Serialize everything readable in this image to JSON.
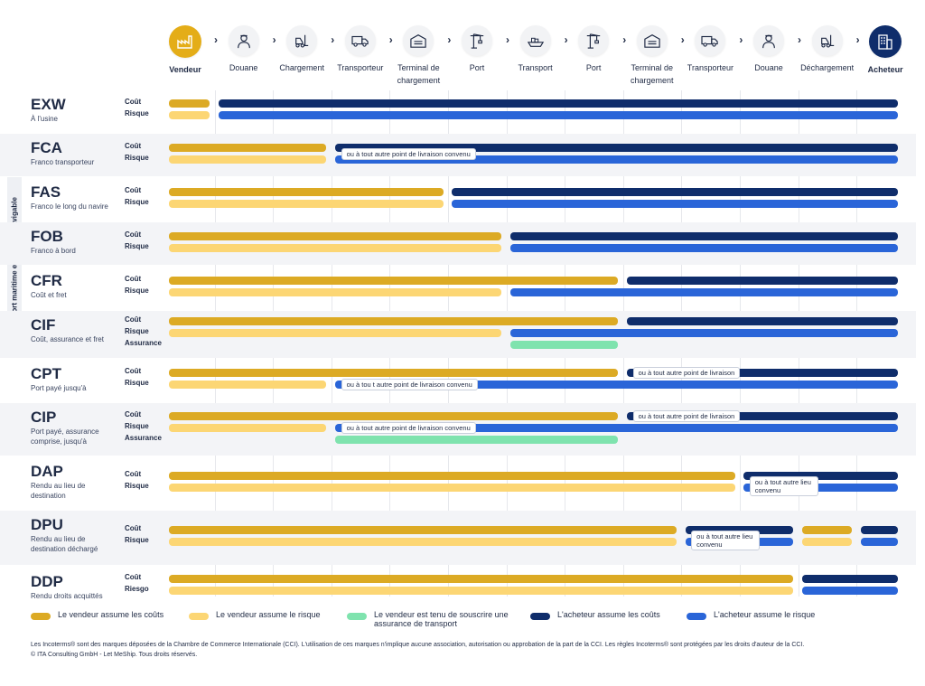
{
  "colors": {
    "seller_cost": "#dcaa24",
    "seller_risk": "#fcd674",
    "insurance": "#7fe3ae",
    "buyer_cost": "#0f2d6b",
    "buyer_risk": "#2a65d8"
  },
  "stages": [
    {
      "label": "Vendeur",
      "icon": "factory-icon",
      "bold": true,
      "active": "seller"
    },
    {
      "label": "Douane",
      "icon": "customs-officer-icon"
    },
    {
      "label": "Chargement",
      "icon": "forklift-icon"
    },
    {
      "label": "Transporteur",
      "icon": "truck-icon"
    },
    {
      "label": "Terminal de chargement",
      "icon": "warehouse-icon"
    },
    {
      "label": "Port",
      "icon": "crane-icon"
    },
    {
      "label": "Transport",
      "icon": "ship-icon"
    },
    {
      "label": "Port",
      "icon": "crane-icon"
    },
    {
      "label": "Terminal de chargement",
      "icon": "warehouse-icon"
    },
    {
      "label": "Transporteur",
      "icon": "truck-icon"
    },
    {
      "label": "Douane",
      "icon": "customs-officer-icon"
    },
    {
      "label": "Déchargement",
      "icon": "forklift-icon"
    },
    {
      "label": "Acheteur",
      "icon": "office-building-icon",
      "bold": true,
      "active": "buyer"
    }
  ],
  "side_label": "Transport maritime et par voie navigable",
  "chart_data": {
    "type": "bar",
    "x_categories": [
      "Vendeur",
      "Douane",
      "Chargement",
      "Transporteur",
      "Terminal de chargement",
      "Port",
      "Transport",
      "Port",
      "Terminal de chargement",
      "Transporteur",
      "Douane",
      "Déchargement",
      "Acheteur"
    ],
    "series_legend": [
      {
        "key": "seller_cost",
        "name": "Le vendeur assume les coûts"
      },
      {
        "key": "seller_risk",
        "name": "Le vendeur assume le risque"
      },
      {
        "key": "insurance",
        "name": "Le vendeur est tenu de souscrire une assurance de transport"
      },
      {
        "key": "buyer_cost",
        "name": "L'acheteur assume les coûts"
      },
      {
        "key": "buyer_risk",
        "name": "L'acheteur assume le risque"
      }
    ],
    "terms": [
      {
        "code": "EXW",
        "desc": "À l'usine",
        "labels": [
          "Coût",
          "Risque"
        ],
        "bars": [
          {
            "line": 0,
            "type": "seller_cost",
            "start": 0,
            "end": 0.7
          },
          {
            "line": 0,
            "type": "buyer_cost",
            "start": 0.85,
            "end": 12.5
          },
          {
            "line": 1,
            "type": "seller_risk",
            "start": 0,
            "end": 0.7
          },
          {
            "line": 1,
            "type": "buyer_risk",
            "start": 0.85,
            "end": 12.5
          }
        ]
      },
      {
        "code": "FCA",
        "desc": "Franco transporteur",
        "labels": [
          "Coût",
          "Risque"
        ],
        "bars": [
          {
            "line": 0,
            "type": "seller_cost",
            "start": 0,
            "end": 2.7
          },
          {
            "line": 0,
            "type": "buyer_cost",
            "start": 2.85,
            "end": 12.5
          },
          {
            "line": 1,
            "type": "seller_risk",
            "start": 0,
            "end": 2.7
          },
          {
            "line": 1,
            "type": "buyer_risk",
            "start": 2.85,
            "end": 12.5
          }
        ],
        "notes": [
          {
            "text": "ou à tout autre point de livraison convenu",
            "line": 0.5,
            "at": 2.95
          }
        ]
      },
      {
        "code": "FAS",
        "desc": "Franco le long du navire",
        "labels": [
          "Coût",
          "Risque"
        ],
        "bars": [
          {
            "line": 0,
            "type": "seller_cost",
            "start": 0,
            "end": 4.7
          },
          {
            "line": 0,
            "type": "buyer_cost",
            "start": 4.85,
            "end": 12.5
          },
          {
            "line": 1,
            "type": "seller_risk",
            "start": 0,
            "end": 4.7
          },
          {
            "line": 1,
            "type": "buyer_risk",
            "start": 4.85,
            "end": 12.5
          }
        ]
      },
      {
        "code": "FOB",
        "desc": "Franco à bord",
        "labels": [
          "Coût",
          "Risque"
        ],
        "bars": [
          {
            "line": 0,
            "type": "seller_cost",
            "start": 0,
            "end": 5.7
          },
          {
            "line": 0,
            "type": "buyer_cost",
            "start": 5.85,
            "end": 12.5
          },
          {
            "line": 1,
            "type": "seller_risk",
            "start": 0,
            "end": 5.7
          },
          {
            "line": 1,
            "type": "buyer_risk",
            "start": 5.85,
            "end": 12.5
          }
        ]
      },
      {
        "code": "CFR",
        "desc": "Coût et fret",
        "labels": [
          "Coût",
          "Risque"
        ],
        "bars": [
          {
            "line": 0,
            "type": "seller_cost",
            "start": 0,
            "end": 7.7
          },
          {
            "line": 0,
            "type": "buyer_cost",
            "start": 7.85,
            "end": 12.5
          },
          {
            "line": 1,
            "type": "seller_risk",
            "start": 0,
            "end": 5.7
          },
          {
            "line": 1,
            "type": "buyer_risk",
            "start": 5.85,
            "end": 12.5
          }
        ]
      },
      {
        "code": "CIF",
        "desc": "Coût, assurance et fret",
        "labels": [
          "Coût",
          "Risque",
          "Assurance"
        ],
        "bars": [
          {
            "line": 0,
            "type": "seller_cost",
            "start": 0,
            "end": 7.7
          },
          {
            "line": 0,
            "type": "buyer_cost",
            "start": 7.85,
            "end": 12.5
          },
          {
            "line": 1,
            "type": "seller_risk",
            "start": 0,
            "end": 5.7
          },
          {
            "line": 1,
            "type": "buyer_risk",
            "start": 5.85,
            "end": 12.5
          },
          {
            "line": 2,
            "type": "insurance",
            "start": 5.85,
            "end": 7.7
          }
        ]
      },
      {
        "code": "CPT",
        "desc": "Port payé jusqu'à",
        "labels": [
          "Coût",
          "Risque"
        ],
        "bars": [
          {
            "line": 0,
            "type": "seller_cost",
            "start": 0,
            "end": 7.7
          },
          {
            "line": 0,
            "type": "buyer_cost",
            "start": 7.85,
            "end": 12.5
          },
          {
            "line": 1,
            "type": "seller_risk",
            "start": 0,
            "end": 2.7
          },
          {
            "line": 1,
            "type": "buyer_risk",
            "start": 2.85,
            "end": 12.5
          }
        ],
        "notes": [
          {
            "text": "ou à tout autre point de livraison",
            "line": 0,
            "at": 7.95
          },
          {
            "text": "ou à tou t autre point de livraison convenu",
            "line": 1,
            "at": 2.95
          }
        ]
      },
      {
        "code": "CIP",
        "desc": "Port payé, assurance comprise, jusqu'à",
        "labels": [
          "Coût",
          "Risque",
          "Assurance"
        ],
        "bars": [
          {
            "line": 0,
            "type": "seller_cost",
            "start": 0,
            "end": 7.7
          },
          {
            "line": 0,
            "type": "buyer_cost",
            "start": 7.85,
            "end": 12.5
          },
          {
            "line": 1,
            "type": "seller_risk",
            "start": 0,
            "end": 2.7
          },
          {
            "line": 1,
            "type": "buyer_risk",
            "start": 2.85,
            "end": 12.5
          },
          {
            "line": 2,
            "type": "insurance",
            "start": 2.85,
            "end": 7.7
          }
        ],
        "notes": [
          {
            "text": "ou à tout autre point de livraison",
            "line": 0,
            "at": 7.95
          },
          {
            "text": "ou à tout autre point de livraison convenu",
            "line": 1,
            "at": 2.95
          }
        ]
      },
      {
        "code": "DAP",
        "desc": "Rendu au lieu de destination",
        "labels": [
          "Coût",
          "Risque"
        ],
        "bars": [
          {
            "line": 0,
            "type": "seller_cost",
            "start": 0,
            "end": 9.7
          },
          {
            "line": 0,
            "type": "buyer_cost",
            "start": 9.85,
            "end": 12.5
          },
          {
            "line": 1,
            "type": "seller_risk",
            "start": 0,
            "end": 9.7
          },
          {
            "line": 1,
            "type": "buyer_risk",
            "start": 9.85,
            "end": 12.5
          }
        ],
        "notes": [
          {
            "text": "ou à tout autre lieu convenu",
            "line": 0.5,
            "at": 9.95,
            "wrap": true
          }
        ]
      },
      {
        "code": "DPU",
        "desc": "Rendu au lieu de destination déchargé",
        "labels": [
          "Coût",
          "Risque"
        ],
        "bars": [
          {
            "line": 0,
            "type": "seller_cost",
            "start": 0,
            "end": 8.7
          },
          {
            "line": 0,
            "type": "buyer_cost",
            "start": 8.85,
            "end": 10.7
          },
          {
            "line": 0,
            "type": "seller_cost",
            "start": 10.85,
            "end": 11.7
          },
          {
            "line": 0,
            "type": "buyer_cost",
            "start": 11.85,
            "end": 12.5
          },
          {
            "line": 1,
            "type": "seller_risk",
            "start": 0,
            "end": 8.7
          },
          {
            "line": 1,
            "type": "buyer_risk",
            "start": 8.85,
            "end": 10.7
          },
          {
            "line": 1,
            "type": "seller_risk",
            "start": 10.85,
            "end": 11.7
          },
          {
            "line": 1,
            "type": "buyer_risk",
            "start": 11.85,
            "end": 12.5
          }
        ],
        "notes": [
          {
            "text": "ou à tout autre lieu convenu",
            "line": 0.5,
            "at": 8.95,
            "wrap": true
          }
        ]
      },
      {
        "code": "DDP",
        "desc": "Rendu droits acquittés",
        "labels": [
          "Coût",
          "Riesgo"
        ],
        "bars": [
          {
            "line": 0,
            "type": "seller_cost",
            "start": 0,
            "end": 10.7
          },
          {
            "line": 0,
            "type": "buyer_cost",
            "start": 10.85,
            "end": 12.5
          },
          {
            "line": 1,
            "type": "seller_risk",
            "start": 0,
            "end": 10.7
          },
          {
            "line": 1,
            "type": "buyer_risk",
            "start": 10.85,
            "end": 12.5
          }
        ]
      }
    ]
  },
  "footer": {
    "line1": "Les Incoterms® sont des marques déposées de la Chambre de Commerce Internationale (CCI). L'utilisation de ces marques n'implique aucune association, autorisation ou approbation de la part de la CCI. Les règles Incoterms® sont protégées par les droits d'auteur de la CCI.",
    "line2": "© ITA Consulting GmbH - Let MeShip. Tous droits réservés."
  }
}
